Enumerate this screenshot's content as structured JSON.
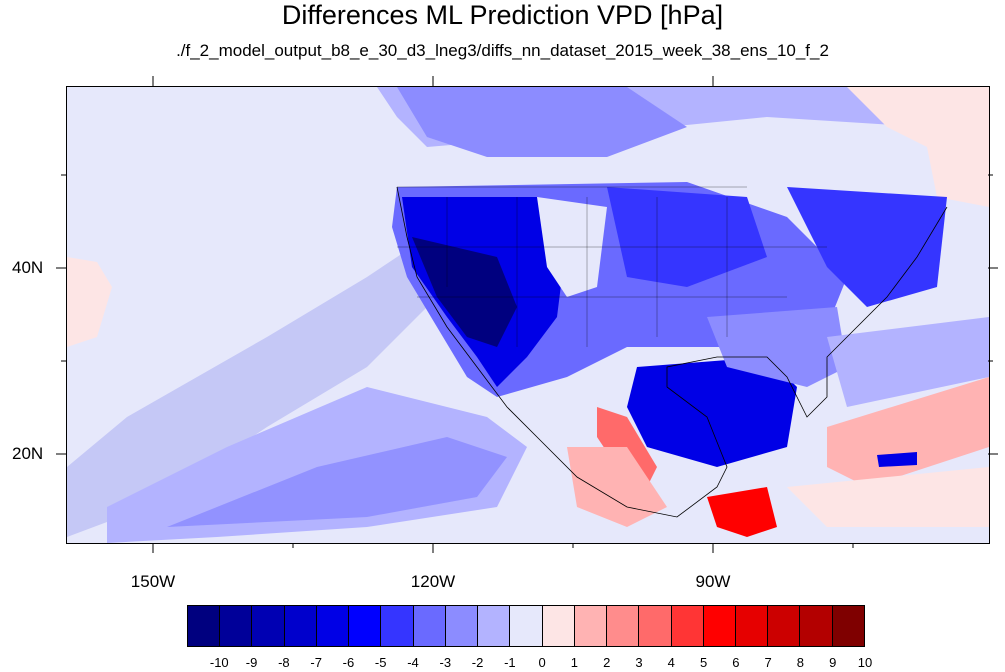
{
  "title": "Differences ML Prediction VPD [hPa]",
  "subtitle": "./f_2_model_output_b8_e_30_d3_lneg3/diffs_nn_dataset_2015_week_38_ens_10_f_2",
  "lat_labels": [
    "40N",
    "20N"
  ],
  "lon_labels": [
    "150W",
    "120W",
    "90W"
  ],
  "colorbar": {
    "labels": [
      "-10",
      "-9",
      "-8",
      "-7",
      "-6",
      "-5",
      "-4",
      "-3",
      "-2",
      "-1",
      "0",
      "1",
      "2",
      "3",
      "4",
      "5",
      "6",
      "7",
      "8",
      "9",
      "10"
    ],
    "colors": [
      "#00007f",
      "#000099",
      "#0000b3",
      "#0000cc",
      "#0000e6",
      "#0000ff",
      "#3535ff",
      "#6a6aff",
      "#8c8cff",
      "#b3b3ff",
      "#e6e8fb",
      "#fde5e5",
      "#ffb3b3",
      "#ff8c8c",
      "#ff6a6a",
      "#ff3535",
      "#ff0000",
      "#e60000",
      "#cc0000",
      "#b30000",
      "#7f0000"
    ]
  },
  "map": {
    "lon_range": [
      -161,
      -63
    ],
    "lat_range": [
      11,
      60
    ],
    "background_color": "#e6e8fb"
  }
}
